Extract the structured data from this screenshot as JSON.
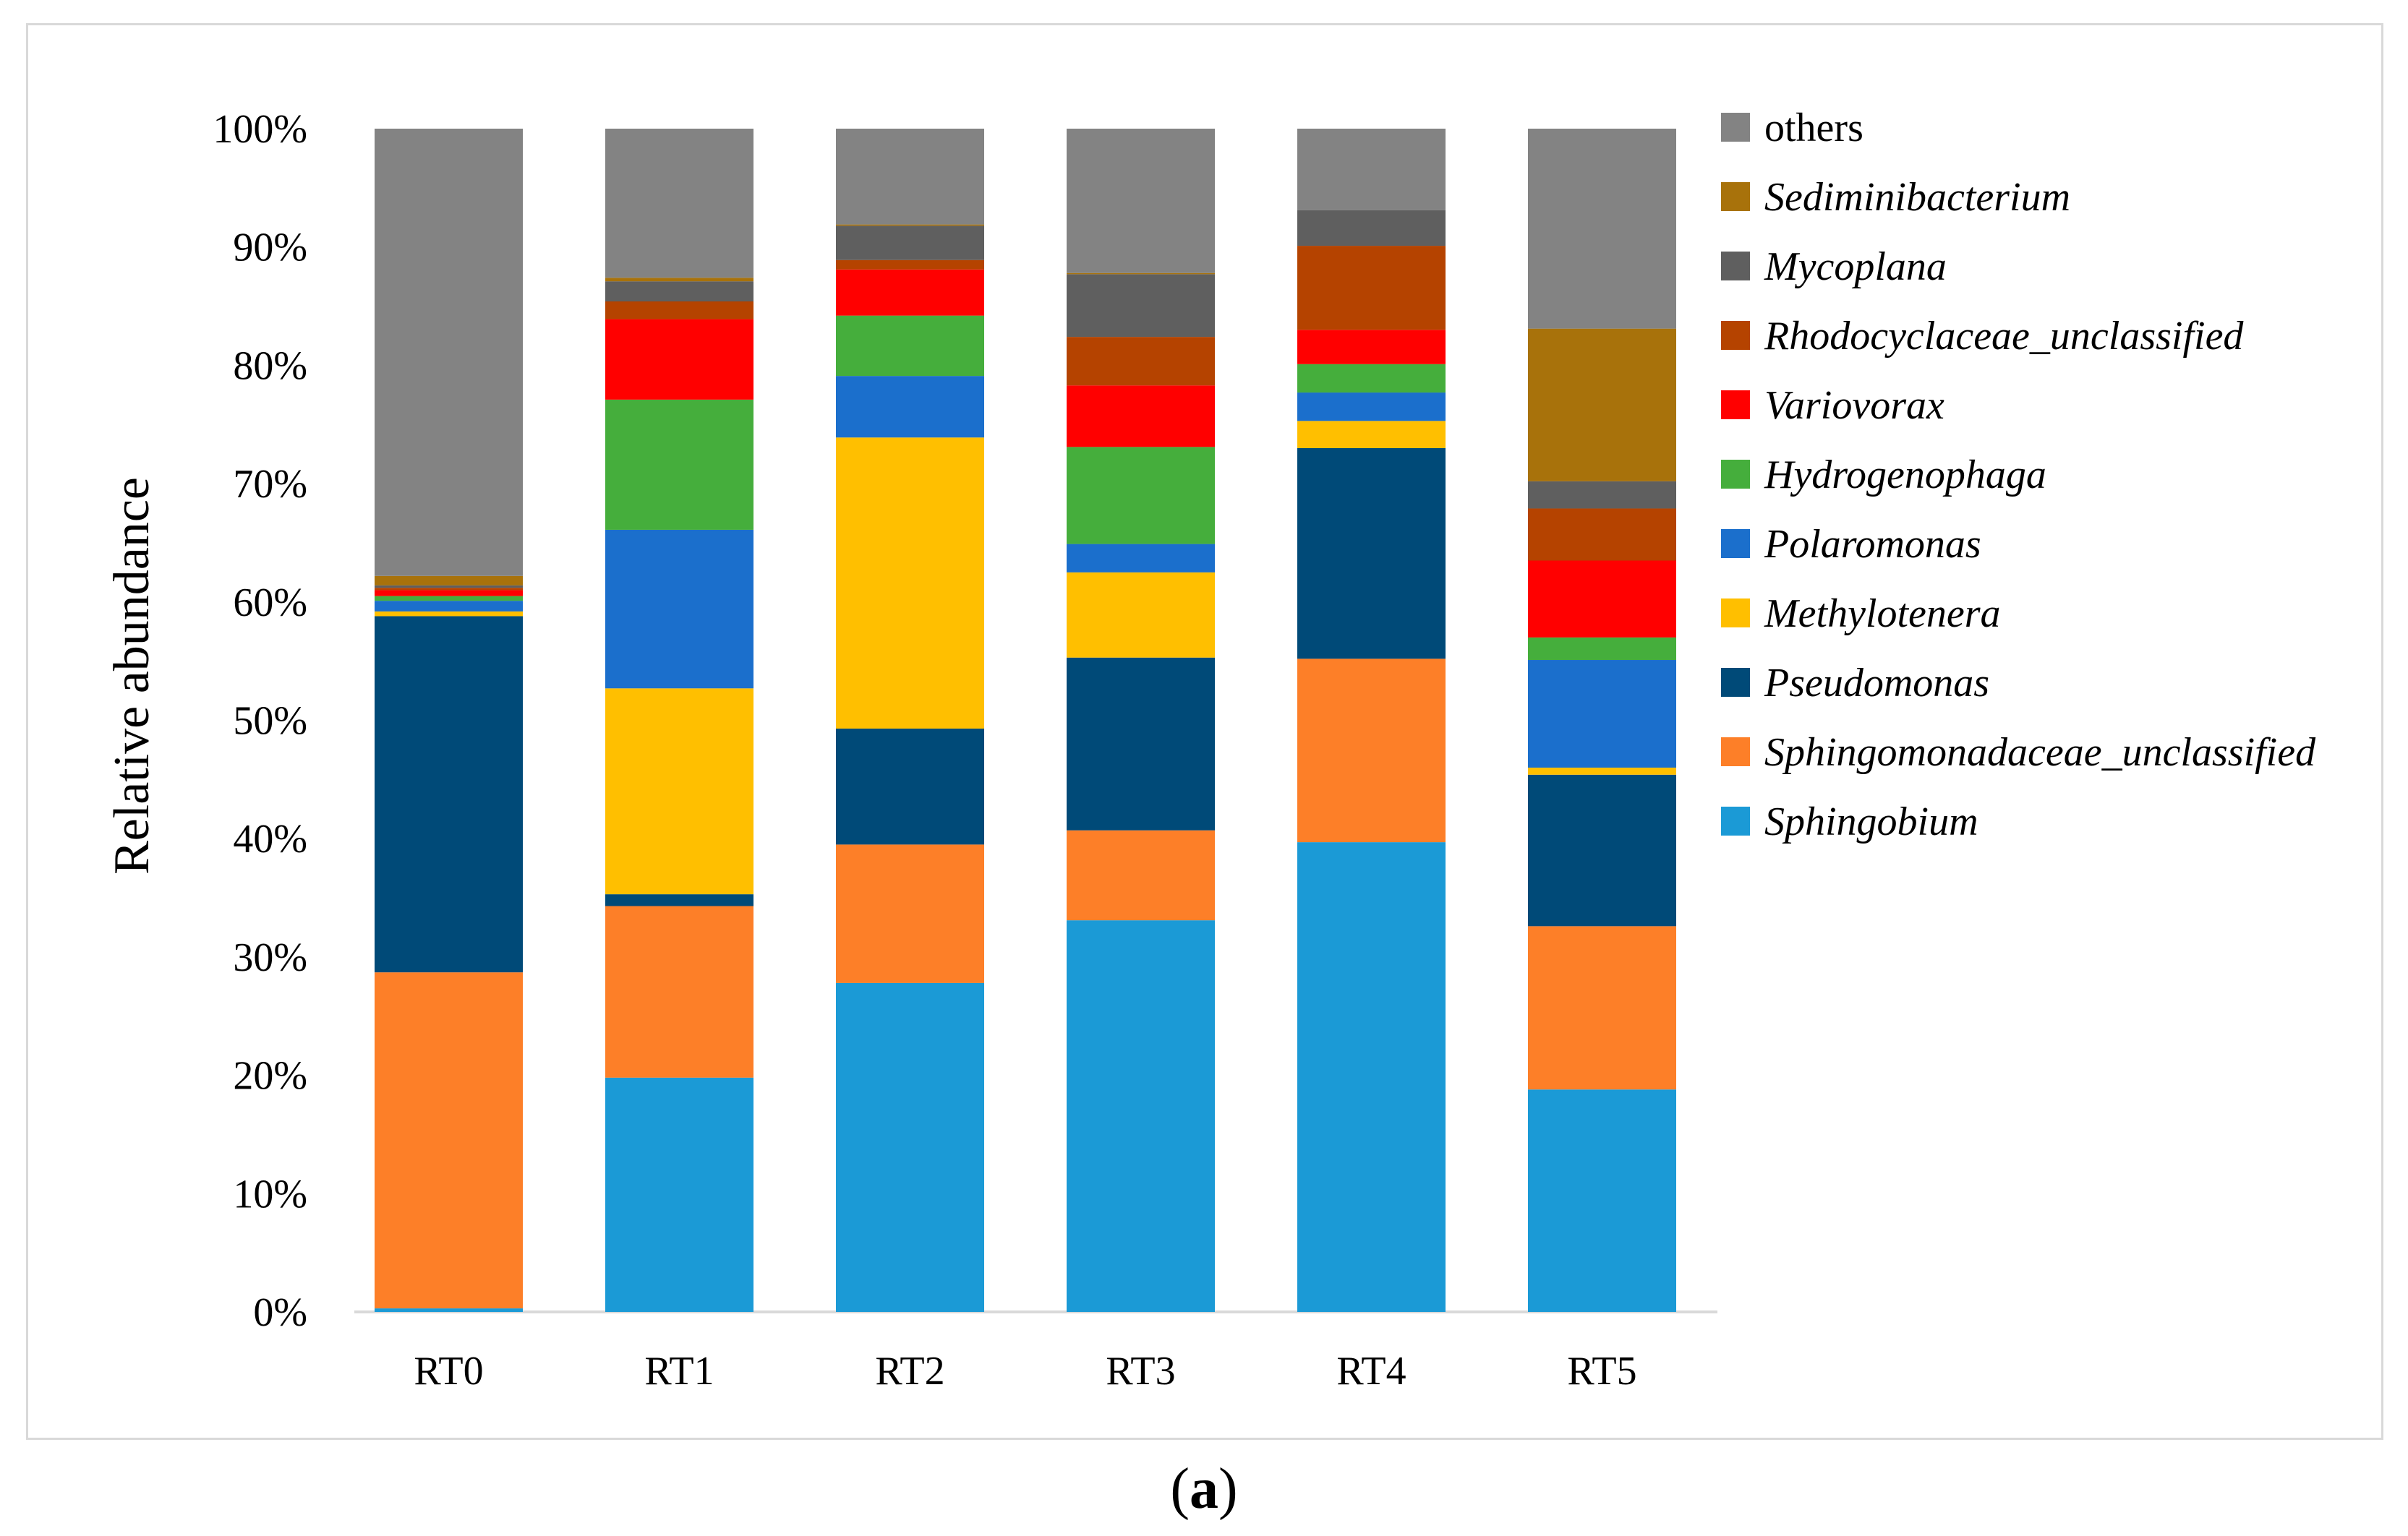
{
  "chart_data": {
    "type": "bar",
    "stacked": true,
    "title": "",
    "xlabel": "",
    "ylabel": "Relative abundance",
    "ylim": [
      0,
      100
    ],
    "yticks": [
      "0%",
      "10%",
      "20%",
      "30%",
      "40%",
      "50%",
      "60%",
      "70%",
      "80%",
      "90%",
      "100%"
    ],
    "categories": [
      "RT0",
      "RT1",
      "RT2",
      "RT3",
      "RT4",
      "RT5"
    ],
    "series": [
      {
        "name": "Sphingobium",
        "italic": true,
        "color": "#1b9ad6",
        "values": [
          0.3,
          19.8,
          27.8,
          33.1,
          39.7,
          18.8
        ]
      },
      {
        "name": "Sphingomonadaceae_unclassified",
        "italic": true,
        "color": "#fd7f28",
        "values": [
          28.4,
          14.5,
          11.7,
          7.6,
          15.5,
          13.8
        ]
      },
      {
        "name": "Pseudomonas",
        "italic": true,
        "color": "#004a78",
        "values": [
          30.1,
          1.0,
          9.8,
          14.6,
          17.8,
          12.8
        ]
      },
      {
        "name": "Methylotenera",
        "italic": true,
        "color": "#ffbf00",
        "values": [
          0.4,
          17.4,
          24.6,
          7.2,
          2.3,
          0.6
        ]
      },
      {
        "name": "Polaromonas",
        "italic": true,
        "color": "#1b6fcc",
        "values": [
          0.9,
          13.4,
          5.2,
          2.4,
          2.4,
          9.1
        ]
      },
      {
        "name": "Hydrogenophaga",
        "italic": true,
        "color": "#45ae3c",
        "values": [
          0.4,
          11.0,
          5.1,
          8.2,
          2.4,
          1.9
        ]
      },
      {
        "name": "Variovorax",
        "italic": true,
        "color": "#ff0000",
        "values": [
          0.5,
          6.8,
          3.9,
          5.2,
          2.9,
          6.5
        ]
      },
      {
        "name": "Rhodocyclaceae_unclassified",
        "italic": true,
        "color": "#b54300",
        "values": [
          0.2,
          1.5,
          0.8,
          4.1,
          7.1,
          4.4
        ]
      },
      {
        "name": "Mycoplana",
        "italic": true,
        "color": "#5f5f5f",
        "values": [
          0.2,
          1.7,
          2.9,
          5.3,
          3.0,
          2.3
        ]
      },
      {
        "name": "Sediminibacterium",
        "italic": true,
        "color": "#a8720b",
        "values": [
          0.8,
          0.3,
          0.1,
          0.1,
          0.0,
          12.9
        ]
      },
      {
        "name": "others",
        "italic": false,
        "color": "#838383",
        "values": [
          37.8,
          12.6,
          8.1,
          12.2,
          6.9,
          16.9
        ]
      }
    ],
    "legend_position": "right",
    "grid": false
  },
  "caption": {
    "open": "(",
    "label": "a",
    "close": ")"
  }
}
